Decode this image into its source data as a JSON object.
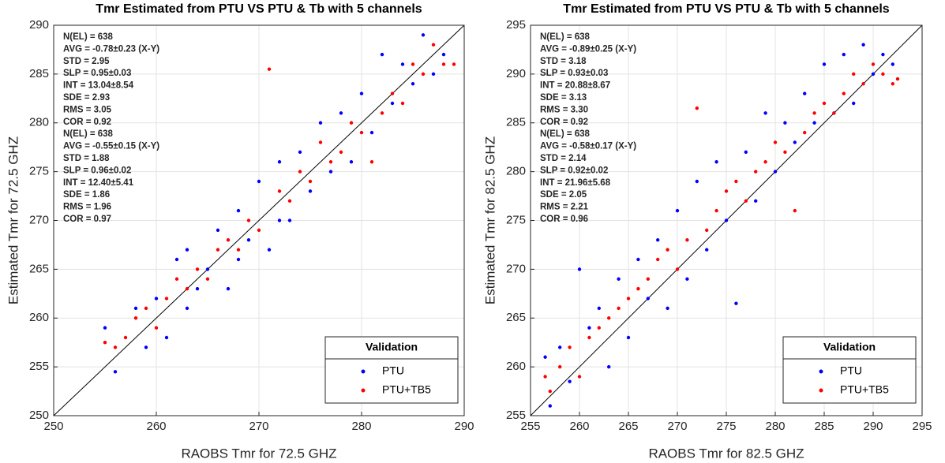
{
  "chart_data": [
    {
      "type": "scatter",
      "title": "Tmr Estimated from PTU VS PTU & Tb with 5 channels",
      "xlabel": "RAOBS Tmr for 72.5 GHZ",
      "ylabel": "Estimated Tmr for 72.5 GHZ",
      "xlim": [
        250,
        290
      ],
      "ylim": [
        250,
        290
      ],
      "xticks": [
        250,
        260,
        270,
        280,
        290
      ],
      "yticks": [
        250,
        255,
        260,
        265,
        270,
        275,
        280,
        285,
        290
      ],
      "grid": true,
      "legend_title": "Validation",
      "legend_position": "lower right",
      "stats": [
        {
          "color": "#0000ff",
          "lines": [
            "N(EL) = 638",
            "AVG = -0.78±0.23 (X-Y)",
            "STD = 2.95",
            "SLP = 0.95±0.03",
            "INT = 13.04±8.54",
            "SDE = 2.93",
            "RMS = 3.05",
            "COR = 0.92"
          ]
        },
        {
          "color": "#ff0000",
          "lines": [
            "N(EL) = 638",
            "AVG = -0.55±0.15 (X-Y)",
            "STD = 1.88",
            "SLP = 0.96±0.02",
            "INT = 12.40±5.41",
            "SDE = 1.86",
            "RMS = 1.96",
            "COR = 0.97"
          ]
        }
      ],
      "series": [
        {
          "name": "PTU",
          "color": "#0000ff",
          "x": [
            255,
            256,
            258,
            259,
            260,
            261,
            262,
            263,
            263,
            264,
            265,
            266,
            267,
            268,
            268,
            269,
            270,
            271,
            272,
            272,
            273,
            274,
            275,
            276,
            277,
            278,
            279,
            280,
            281,
            282,
            283,
            284,
            285,
            286,
            287,
            288
          ],
          "values": [
            259,
            254.5,
            261,
            257,
            262,
            258,
            266,
            261,
            267,
            263,
            265,
            269,
            263,
            271,
            266,
            268,
            274,
            267,
            276,
            270,
            270,
            277,
            273,
            280,
            275,
            281,
            276,
            283,
            279,
            287,
            282,
            286,
            284,
            289,
            285,
            287
          ]
        },
        {
          "name": "PTU+TB5",
          "color": "#ff0000",
          "x": [
            255,
            256,
            257,
            258,
            259,
            260,
            261,
            262,
            263,
            264,
            265,
            266,
            267,
            268,
            269,
            270,
            271,
            272,
            273,
            274,
            275,
            276,
            277,
            278,
            279,
            280,
            281,
            282,
            283,
            284,
            285,
            286,
            287,
            288,
            289
          ],
          "values": [
            257.5,
            257,
            258,
            260,
            261,
            259,
            262,
            264,
            263,
            265,
            264,
            267,
            268,
            267,
            270,
            269,
            285.5,
            273,
            272,
            275,
            274,
            278,
            276,
            277,
            280,
            279,
            276,
            281,
            283,
            282,
            286,
            285,
            288,
            286,
            286
          ]
        }
      ]
    },
    {
      "type": "scatter",
      "title": "Tmr Estimated from PTU VS PTU & Tb with 5 channels",
      "xlabel": "RAOBS Tmr for 82.5 GHZ",
      "ylabel": "Estimated Tmr for 82.5 GHZ",
      "xlim": [
        255,
        295
      ],
      "ylim": [
        255,
        295
      ],
      "xticks": [
        255,
        260,
        265,
        270,
        275,
        280,
        285,
        290,
        295
      ],
      "yticks": [
        255,
        260,
        265,
        270,
        275,
        280,
        285,
        290,
        295
      ],
      "grid": true,
      "legend_title": "Validation",
      "legend_position": "lower right",
      "stats": [
        {
          "color": "#0000ff",
          "lines": [
            "N(EL) = 638",
            "AVG = -0.89±0.25 (X-Y)",
            "STD = 3.18",
            "SLP = 0.93±0.03",
            "INT = 20.88±8.67",
            "SDE = 3.13",
            "RMS = 3.30",
            "COR = 0.92"
          ]
        },
        {
          "color": "#ff0000",
          "lines": [
            "N(EL) = 638",
            "AVG = -0.58±0.17 (X-Y)",
            "STD = 2.14",
            "SLP = 0.92±0.02",
            "INT = 21.96±5.68",
            "SDE = 2.05",
            "RMS = 2.21",
            "COR = 0.96"
          ]
        }
      ],
      "series": [
        {
          "name": "PTU",
          "color": "#0000ff",
          "x": [
            256.5,
            257,
            258,
            259,
            260,
            261,
            262,
            263,
            264,
            265,
            266,
            267,
            268,
            269,
            270,
            271,
            272,
            273,
            274,
            275,
            276,
            277,
            278,
            279,
            280,
            281,
            282,
            283,
            284,
            285,
            286,
            287,
            288,
            289,
            290,
            291,
            292
          ],
          "values": [
            261,
            256,
            262,
            258.5,
            270,
            264,
            266,
            260,
            269,
            263,
            271,
            267,
            273,
            266,
            276,
            269,
            279,
            272,
            281,
            275,
            266.5,
            282,
            277,
            286,
            280,
            285,
            283,
            288,
            285,
            291,
            286,
            292,
            287,
            293,
            290,
            292,
            291
          ]
        },
        {
          "name": "PTU+TB5",
          "color": "#ff0000",
          "x": [
            256.5,
            257,
            258,
            259,
            260,
            261,
            262,
            263,
            264,
            265,
            266,
            267,
            268,
            269,
            270,
            271,
            272,
            273,
            274,
            275,
            276,
            277,
            278,
            279,
            280,
            281,
            282,
            283,
            284,
            285,
            286,
            287,
            288,
            289,
            290,
            291,
            292,
            292.5
          ],
          "values": [
            259,
            257.5,
            260,
            262,
            259,
            263,
            264,
            265,
            266,
            267,
            268,
            269,
            271,
            272,
            270,
            273,
            286.5,
            274,
            276,
            278,
            279,
            277,
            280,
            281,
            283,
            282,
            276,
            284,
            286,
            287,
            286,
            288,
            290,
            289,
            291,
            290,
            289,
            289.5
          ]
        }
      ]
    }
  ]
}
